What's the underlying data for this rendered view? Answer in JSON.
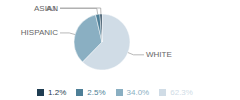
{
  "chart_data": {
    "type": "pie",
    "categories": [
      "WHITE",
      "HISPANIC",
      "ASIAN",
      "A.I."
    ],
    "values": [
      62.3,
      34.0,
      2.5,
      1.2
    ],
    "value_labels": [
      "62.3%",
      "34.0%",
      "2.5%",
      "1.2%"
    ],
    "colors": [
      "#d0dce6",
      "#8aafc2",
      "#4e7f97",
      "#1f3d52"
    ],
    "legend": "bottom"
  }
}
